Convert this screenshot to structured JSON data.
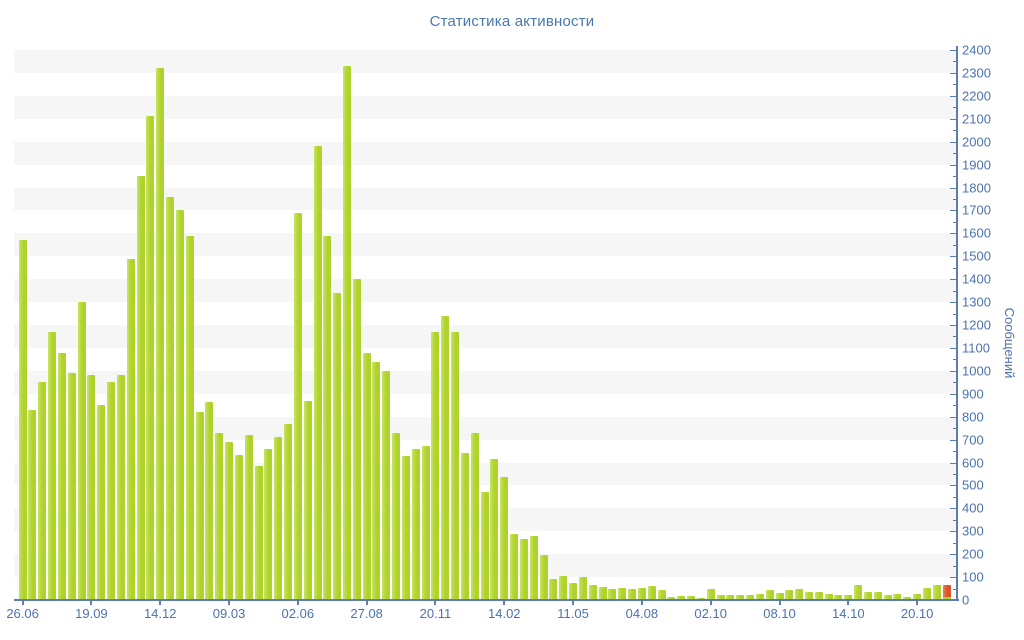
{
  "title": "Статистика активности",
  "y_axis": {
    "label": "Сообщений",
    "min": 0,
    "max": 2400,
    "major_step": 100,
    "minor_step": 50,
    "tick_labels": [
      "0",
      "100",
      "200",
      "300",
      "400",
      "500",
      "600",
      "700",
      "800",
      "900",
      "1000",
      "1100",
      "1200",
      "1300",
      "1400",
      "1500",
      "1600",
      "1700",
      "1800",
      "1900",
      "2000",
      "2100",
      "2200",
      "2300",
      "2400"
    ]
  },
  "x_axis": {
    "tick_labels": [
      "26.06",
      "19.09",
      "14.12",
      "09.03",
      "02.06",
      "27.08",
      "20.11",
      "14.02",
      "11.05",
      "04.08",
      "02.10",
      "08.10",
      "14.10",
      "20.10"
    ],
    "tick_bar_indices": [
      0,
      7,
      14,
      21,
      28,
      35,
      42,
      49,
      56,
      63,
      70,
      77,
      84,
      91
    ]
  },
  "chart_data": {
    "type": "bar",
    "title": "Статистика активности",
    "ylabel": "Сообщений",
    "ylim": [
      0,
      2400
    ],
    "grid": "horizontal stripes every 100 units, alternating white / light gray",
    "legend_position": "none",
    "bar_count": 95,
    "values": [
      1570,
      830,
      950,
      1170,
      1080,
      990,
      1300,
      980,
      850,
      950,
      980,
      1490,
      1850,
      2110,
      2320,
      1760,
      1700,
      1590,
      820,
      865,
      730,
      690,
      633,
      720,
      585,
      660,
      710,
      770,
      1690,
      870,
      1980,
      1590,
      1340,
      2330,
      1400,
      1080,
      1040,
      1000,
      730,
      630,
      660,
      670,
      1170,
      1240,
      1170,
      640,
      730,
      470,
      615,
      535,
      290,
      265,
      280,
      195,
      90,
      105,
      75,
      100,
      65,
      58,
      47,
      52,
      46,
      52,
      59,
      42,
      15,
      17,
      16,
      8,
      50,
      20,
      20,
      24,
      20,
      28,
      45,
      30,
      44,
      49,
      37,
      37,
      26,
      20,
      20,
      65,
      37,
      37,
      20,
      25,
      12,
      25,
      53,
      64,
      65
    ],
    "x_tick_labels": [
      "26.06",
      "19.09",
      "14.12",
      "09.03",
      "02.06",
      "27.08",
      "20.11",
      "14.02",
      "11.05",
      "04.08",
      "02.10",
      "08.10",
      "14.10",
      "20.10"
    ],
    "x_tick_bar_indices": [
      0,
      7,
      14,
      21,
      28,
      35,
      42,
      49,
      56,
      63,
      70,
      77,
      84,
      91
    ],
    "highlight_last_bar": {
      "index": 94,
      "value": 65,
      "color": "red-orange",
      "green_base_value": 15
    }
  },
  "colors": {
    "background": "#ffffff",
    "stripe": "#f6f6f6",
    "bar_green": "#afd32c",
    "bar_green_light": "#c9e362",
    "bar_red": "#d9552f",
    "bar_red_light": "#e67f50",
    "axis_line": "#5d7cb0",
    "tick_text": "#4d73ad",
    "title_text": "#4878b0"
  }
}
